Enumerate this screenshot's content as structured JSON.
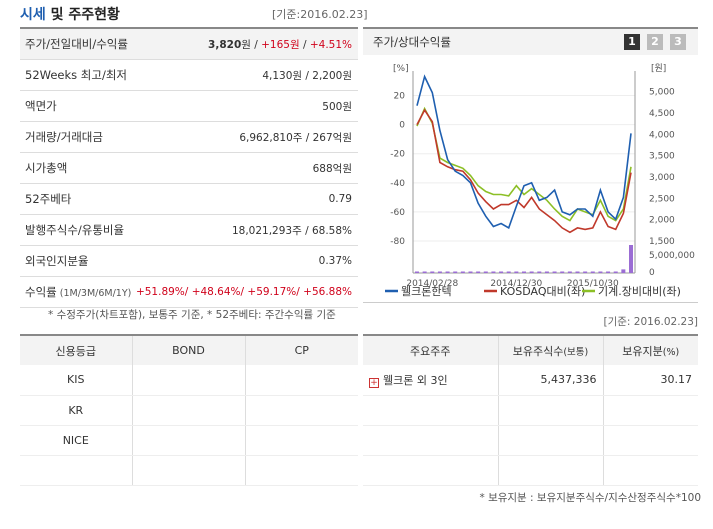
{
  "header": {
    "title_part1": "시세",
    "title_part2": "및 주주현황",
    "basis": "[기준:2016.02.23]"
  },
  "info_rows": [
    {
      "label": "주가/전일대비/수익률",
      "parts": [
        {
          "t": "3,820",
          "c": "bold"
        },
        {
          "t": "원 / ",
          "c": ""
        },
        {
          "t": "+165원",
          "c": "up"
        },
        {
          "t": " / ",
          "c": ""
        },
        {
          "t": "+4.51%",
          "c": "up"
        }
      ]
    },
    {
      "label": "52Weeks 최고/최저",
      "parts": [
        {
          "t": "4,130원 / 2,200원",
          "c": ""
        }
      ]
    },
    {
      "label": "액면가",
      "parts": [
        {
          "t": "500원",
          "c": ""
        }
      ]
    },
    {
      "label": "거래량/거래대금",
      "parts": [
        {
          "t": "6,962,810주 / 267억원",
          "c": ""
        }
      ]
    },
    {
      "label": "시가총액",
      "parts": [
        {
          "t": "688억원",
          "c": ""
        }
      ]
    },
    {
      "label": "52주베타",
      "parts": [
        {
          "t": "0.79",
          "c": ""
        }
      ]
    },
    {
      "label": "발행주식수/유통비율",
      "parts": [
        {
          "t": "18,021,293주 / 68.58%",
          "c": ""
        }
      ]
    },
    {
      "label": "외국인지분율",
      "parts": [
        {
          "t": "0.37%",
          "c": ""
        }
      ]
    },
    {
      "label": "수익률",
      "label_sub": "(1M/3M/6M/1Y)",
      "parts": [
        {
          "t": "+51.89%",
          "c": "up"
        },
        {
          "t": "/ ",
          "c": "up"
        },
        {
          "t": "+48.64%",
          "c": "up"
        },
        {
          "t": "/ ",
          "c": "up"
        },
        {
          "t": "+59.17%",
          "c": "up"
        },
        {
          "t": "/ ",
          "c": "up"
        },
        {
          "t": "+56.88%",
          "c": "up"
        }
      ]
    }
  ],
  "footnote1": "* 수정주가(차트포함), 보통주 기준, * 52주베타: 주간수익률 기준",
  "chart_panel": {
    "title": "주가/상대수익률",
    "tabs": [
      "1",
      "2",
      "3"
    ],
    "active_tab": 0
  },
  "chart_data": {
    "type": "line",
    "left_axis_unit": "[%]",
    "right_axis_unit": "[원]",
    "left_ticks": [
      20,
      0,
      -20,
      -40,
      -60,
      -80
    ],
    "left_ylim": [
      -80,
      30
    ],
    "right_ticks": [
      "5,000",
      "4,500",
      "4,000",
      "3,500",
      "3,000",
      "2,500",
      "2,000",
      "1,500"
    ],
    "right_ylim": [
      1500,
      5250
    ],
    "volume_tick_labels": [
      "5,000,000",
      "0"
    ],
    "x_labels": [
      "2014/02/28",
      "2014/12/30",
      "2015/10/30"
    ],
    "series": [
      {
        "name": "웰크론한텍",
        "color": "#1f5fb0",
        "values": [
          13,
          33,
          22,
          -4,
          -24,
          -32,
          -35,
          -40,
          -54,
          -63,
          -70,
          -68,
          -71,
          -56,
          -42,
          -40,
          -52,
          -50,
          -45,
          -60,
          -62,
          -58,
          -58,
          -63,
          -45,
          -60,
          -65,
          -50,
          -6
        ]
      },
      {
        "name": "KOSDAQ대비(좌)",
        "color": "#c0392b",
        "values": [
          0,
          10,
          2,
          -26,
          -29,
          -31,
          -32,
          -38,
          -47,
          -53,
          -58,
          -55,
          -55,
          -52,
          -57,
          -50,
          -58,
          -62,
          -66,
          -71,
          -74,
          -71,
          -72,
          -71,
          -60,
          -70,
          -72,
          -61,
          -33
        ]
      },
      {
        "name": "기계.장비대비(좌)",
        "color": "#8cbf26",
        "values": [
          -1,
          11,
          1,
          -23,
          -26,
          -28,
          -30,
          -35,
          -42,
          -46,
          -48,
          -48,
          -49,
          -42,
          -48,
          -44,
          -48,
          -52,
          -58,
          -63,
          -66,
          -58,
          -60,
          -62,
          -52,
          -63,
          -66,
          -58,
          -29
        ]
      },
      {
        "name": "거래량",
        "color": "#9b6dd4",
        "values": [
          80000,
          60000,
          50000,
          90000,
          40000,
          30000,
          20000,
          20000,
          10000,
          20000,
          30000,
          20000,
          20000,
          40000,
          30000,
          20000,
          20000,
          20000,
          20000,
          10000,
          20000,
          20000,
          20000,
          20000,
          30000,
          60000,
          40000,
          900000,
          6962810
        ]
      }
    ]
  },
  "credit": {
    "headers": [
      "신용등급",
      "BOND",
      "CP"
    ],
    "rows": [
      [
        "KIS",
        "",
        ""
      ],
      [
        "KR",
        "",
        ""
      ],
      [
        "NICE",
        "",
        ""
      ]
    ]
  },
  "holders_basis": "[기준: 2016.02.23]",
  "holders": {
    "headers": [
      "주요주주",
      "보유주식수",
      "(보통)",
      "보유지분",
      "(%)"
    ],
    "rows": [
      {
        "name": "웰크론 외 3인",
        "shares": "5,437,336",
        "pct": "30.17"
      }
    ],
    "empty_rows": 3
  },
  "footnote2": "* 보유지분 : 보유지분주식수/지수산정주식수*100"
}
